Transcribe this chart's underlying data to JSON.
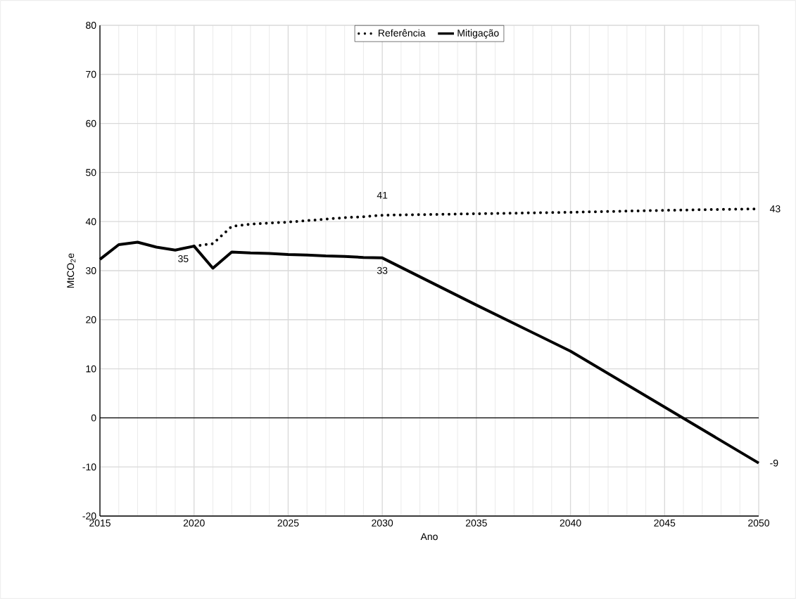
{
  "chart_data": {
    "type": "line",
    "xlabel": "Ano",
    "ylabel": "MtCO$_{2}$e",
    "xlim": [
      2015,
      2050
    ],
    "ylim": [
      -20,
      80
    ],
    "xticks": [
      2015,
      2020,
      2025,
      2030,
      2035,
      2040,
      2045,
      2050
    ],
    "yticks": [
      -20,
      -10,
      0,
      10,
      20,
      30,
      40,
      50,
      60,
      70,
      80
    ],
    "grid": true,
    "legend": "top",
    "ref_lines": [
      {
        "axis": "y",
        "value": 0,
        "color": "#000000"
      }
    ],
    "series": [
      {
        "name": "Referência",
        "color": "#000000",
        "line_style": "dotted",
        "x": [
          2020,
          2021,
          2022,
          2023,
          2024,
          2025,
          2026,
          2027,
          2028,
          2029,
          2030,
          2035,
          2040,
          2045,
          2050
        ],
        "values": [
          35.0,
          35.5,
          39.0,
          39.5,
          39.7,
          39.9,
          40.2,
          40.5,
          40.8,
          41.0,
          41.3,
          41.6,
          41.9,
          42.3,
          42.6
        ],
        "value_labels": [
          null,
          null,
          null,
          null,
          null,
          null,
          null,
          null,
          null,
          null,
          "41",
          null,
          null,
          null,
          "43"
        ]
      },
      {
        "name": "Mitigação",
        "color": "#000000",
        "line_style": "solid",
        "x": [
          2015,
          2016,
          2017,
          2018,
          2019,
          2020,
          2021,
          2022,
          2023,
          2024,
          2025,
          2026,
          2027,
          2028,
          2029,
          2030,
          2035,
          2040,
          2045,
          2050
        ],
        "values": [
          32.3,
          35.3,
          35.8,
          34.8,
          34.2,
          35.0,
          30.5,
          33.8,
          33.6,
          33.5,
          33.3,
          33.2,
          33.0,
          32.9,
          32.7,
          32.6,
          23.0,
          13.6,
          2.2,
          -9.2
        ],
        "value_labels": [
          null,
          null,
          null,
          null,
          null,
          "35",
          null,
          null,
          null,
          null,
          null,
          null,
          null,
          null,
          null,
          "33",
          null,
          null,
          null,
          "-9"
        ]
      }
    ]
  }
}
